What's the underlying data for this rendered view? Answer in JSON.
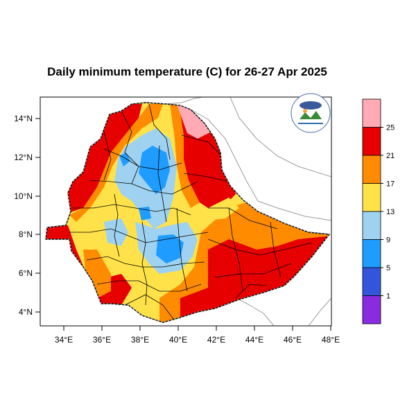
{
  "map": {
    "title": "Daily minimum temperature (C) for 26-27 Apr 2025",
    "region": "Ethiopia",
    "lon_ticks": [
      "34°E",
      "36°E",
      "38°E",
      "40°E",
      "42°E",
      "44°E",
      "46°E",
      "48°E"
    ],
    "lat_ticks": [
      "4°N",
      "6°N",
      "8°N",
      "10°N",
      "12°N",
      "14°N"
    ],
    "logo_icon": "ethiopian-meteorology-institute-logo"
  },
  "legend": {
    "bins": [
      {
        "color": "#8a2be2"
      },
      {
        "color": "#3355dd"
      },
      {
        "color": "#1e9cff"
      },
      {
        "color": "#9ed2f0"
      },
      {
        "color": "#ffe24a"
      },
      {
        "color": "#ff8c00"
      },
      {
        "color": "#e60000"
      },
      {
        "color": "#ffaab4"
      }
    ],
    "labels": [
      "1",
      "5",
      "9",
      "13",
      "17",
      "21",
      "25"
    ]
  }
}
